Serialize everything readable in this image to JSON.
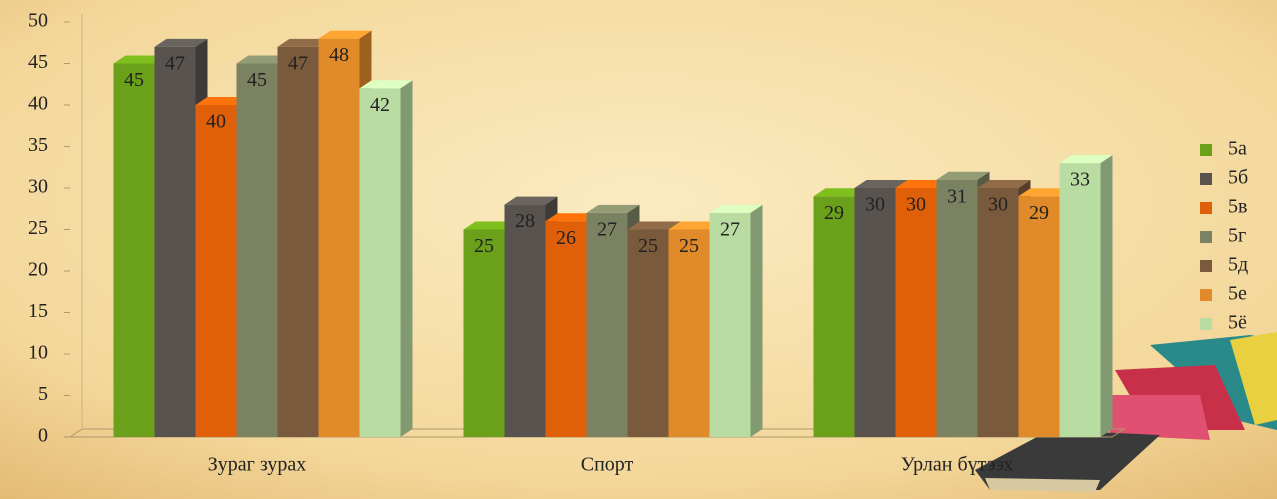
{
  "chart_data": {
    "type": "bar3d",
    "categories": [
      "Зураг зурах",
      "Спорт",
      "Урлан бүтээх"
    ],
    "series": [
      {
        "name": "5а",
        "color": "#6aa01a",
        "values": [
          45,
          25,
          29
        ]
      },
      {
        "name": "5б",
        "color": "#58534e",
        "values": [
          47,
          28,
          30
        ]
      },
      {
        "name": "5в",
        "color": "#e0600a",
        "values": [
          40,
          26,
          30
        ]
      },
      {
        "name": "5г",
        "color": "#7b8262",
        "values": [
          45,
          27,
          31
        ]
      },
      {
        "name": "5д",
        "color": "#7a5a3c",
        "values": [
          47,
          25,
          30
        ]
      },
      {
        "name": "5е",
        "color": "#e08a2a",
        "values": [
          48,
          25,
          29
        ]
      },
      {
        "name": "5ё",
        "color": "#b9dca2",
        "values": [
          42,
          27,
          33
        ]
      }
    ],
    "ylim": [
      0,
      50
    ],
    "yticks": [
      0,
      5,
      10,
      15,
      20,
      25,
      30,
      35,
      40,
      45,
      50
    ],
    "grid": false,
    "legend": "right"
  }
}
